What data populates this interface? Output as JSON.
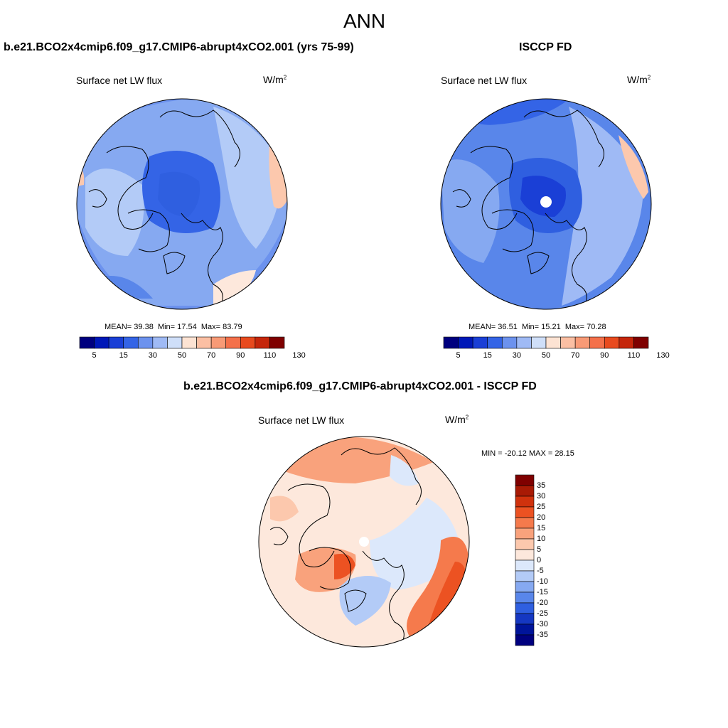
{
  "figure": {
    "season": "ANN",
    "field": "Surface net LW flux",
    "units_base": "W/m",
    "units_exp": "2"
  },
  "chart_data": [
    {
      "type": "heatmap",
      "title": "b.e21.BCO2x4cmip6.f09_g17.CMIP6-abrupt4xCO2.001 (yrs 75-99)",
      "left_label": "Surface net LW flux",
      "stats": {
        "mean_label": "MEAN=",
        "mean": "39.38",
        "min_label": "Min=",
        "min": "17.54",
        "max_label": "Max=",
        "max": "83.79"
      },
      "colorbar_ticks": [
        "5",
        "15",
        "30",
        "50",
        "70",
        "90",
        "110",
        "130"
      ],
      "colorbar_colors": [
        "#00007f",
        "#0018b8",
        "#1a3fd6",
        "#3464e6",
        "#6c92ee",
        "#9fbaf5",
        "#cfdff9",
        "#fde3d3",
        "#fbbfa3",
        "#f89a76",
        "#f4704a",
        "#e84a1e",
        "#c5260b",
        "#7f0000"
      ]
    },
    {
      "type": "heatmap",
      "title": "ISCCP FD",
      "left_label": "Surface net LW flux",
      "stats": {
        "mean_label": "MEAN=",
        "mean": "36.51",
        "min_label": "Min=",
        "min": "15.21",
        "max_label": "Max=",
        "max": "70.28"
      },
      "colorbar_ticks": [
        "5",
        "15",
        "30",
        "50",
        "70",
        "90",
        "110",
        "130"
      ],
      "colorbar_colors": [
        "#00007f",
        "#0018b8",
        "#1a3fd6",
        "#3464e6",
        "#6c92ee",
        "#9fbaf5",
        "#cfdff9",
        "#fde3d3",
        "#fbbfa3",
        "#f89a76",
        "#f4704a",
        "#e84a1e",
        "#c5260b",
        "#7f0000"
      ]
    },
    {
      "type": "heatmap",
      "title": "b.e21.BCO2x4cmip6.f09_g17.CMIP6-abrupt4xCO2.001 - ISCCP FD",
      "left_label": "Surface net LW flux",
      "stats_text": "MIN = -20.12 MAX =  28.15",
      "colorbar_ticks": [
        "35",
        "30",
        "25",
        "20",
        "15",
        "10",
        "5",
        "0",
        "-5",
        "-10",
        "-15",
        "-20",
        "-25",
        "-30",
        "-35"
      ],
      "colorbar_colors": [
        "#7f0000",
        "#a81a05",
        "#d0320d",
        "#ec5222",
        "#f57a4c",
        "#f9a27c",
        "#fcc8ad",
        "#fde8dc",
        "#dce8fb",
        "#b3cbf7",
        "#86a9f1",
        "#5986ea",
        "#2f5fe0",
        "#1537c2",
        "#00149a",
        "#00007f"
      ]
    }
  ]
}
